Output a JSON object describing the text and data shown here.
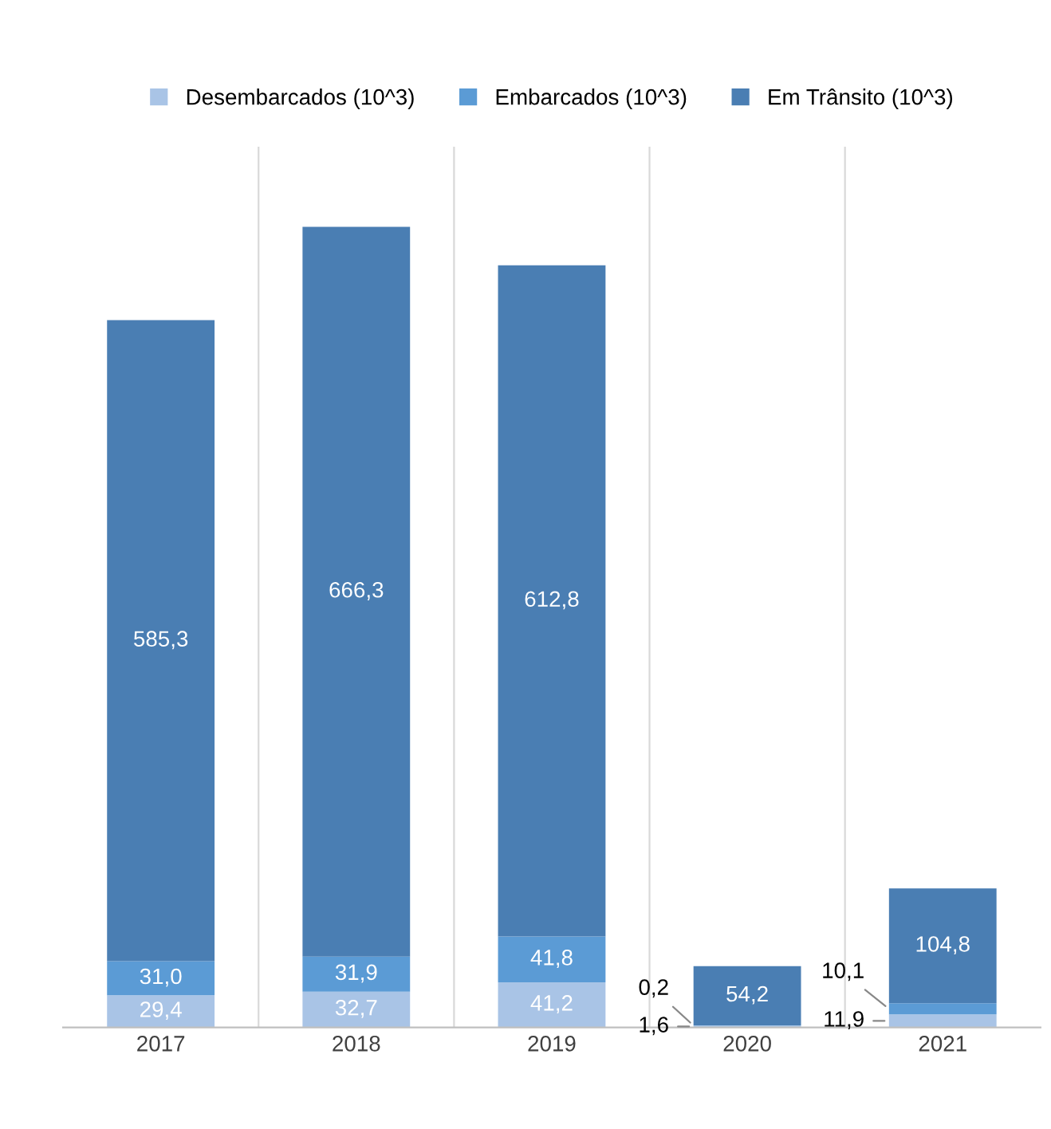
{
  "chart_data": {
    "type": "bar",
    "stacked": true,
    "categories": [
      "2017",
      "2018",
      "2019",
      "2020",
      "2021"
    ],
    "series": [
      {
        "name": "Desembarcados (10^3)",
        "color": "#a9c4e6",
        "values": [
          29.4,
          32.7,
          41.2,
          1.6,
          11.9
        ],
        "value_labels": [
          "29,4",
          "32,7",
          "41,2",
          "1,6",
          "11,9"
        ]
      },
      {
        "name": "Embarcados (10^3)",
        "color": "#5b9bd5",
        "values": [
          31.0,
          31.9,
          41.8,
          0.2,
          10.1
        ],
        "value_labels": [
          "31,0",
          "31,9",
          "41,8",
          "0,2",
          "10,1"
        ]
      },
      {
        "name": "Em Trânsito (10^3)",
        "color": "#4a7eb3",
        "values": [
          585.3,
          666.3,
          612.8,
          54.2,
          104.8
        ],
        "value_labels": [
          "585,3",
          "666,3",
          "612,8",
          "54,2",
          "104,8"
        ]
      }
    ],
    "legend": "top",
    "grid": false,
    "tick_labels": "x"
  }
}
